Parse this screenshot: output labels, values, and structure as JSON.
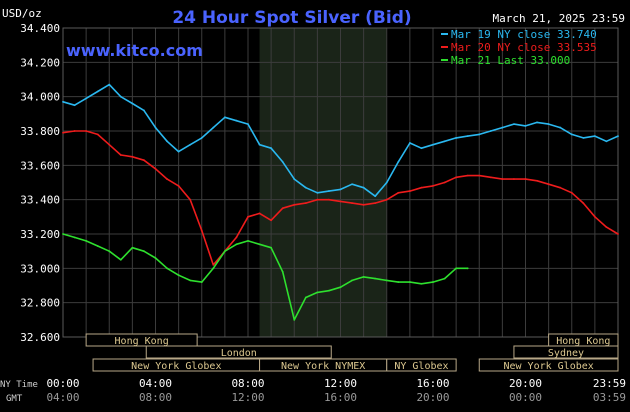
{
  "chart_data": {
    "type": "line",
    "title": "24 Hour Spot Silver (Bid)",
    "ylabel": "USD/oz",
    "date": "March 21, 2025 23:59",
    "watermark": "www.kitco.com",
    "ylim": [
      32.6,
      34.4
    ],
    "yticks": [
      "34.400",
      "34.200",
      "34.000",
      "33.800",
      "33.600",
      "33.400",
      "33.200",
      "33.000",
      "32.800",
      "32.600"
    ],
    "xlim": [
      0,
      24
    ],
    "row_labels": {
      "ny": "NY Time",
      "gmt": "GMT"
    },
    "xticks_ny": [
      "00:00",
      "04:00",
      "08:00",
      "12:00",
      "16:00",
      "20:00",
      "23:59"
    ],
    "xticks_gmt": [
      "04:00",
      "08:00",
      "12:00",
      "16:00",
      "20:00",
      "00:00",
      "03:59"
    ],
    "shaded_session_hours": [
      8.5,
      14
    ],
    "legend": [
      {
        "label": "Mar 19 NY close 33.740",
        "color": "#2ab8f0"
      },
      {
        "label": "Mar 20 NY close 33.535",
        "color": "#ee1c1c"
      },
      {
        "label": "Mar 21 Last 33.000",
        "color": "#2ee02e"
      }
    ],
    "sessions": [
      {
        "name": "Hong Kong",
        "row": 0,
        "start": 1.0,
        "end": 5.8
      },
      {
        "name": "London",
        "row": 1,
        "start": 3.6,
        "end": 11.6
      },
      {
        "name": "New York Globex",
        "row": 2,
        "start": 1.3,
        "end": 8.5
      },
      {
        "name": "New York NYMEX",
        "row": 2,
        "start": 8.5,
        "end": 14.0
      },
      {
        "name": "NY Globex",
        "row": 2,
        "start": 14.0,
        "end": 17.0
      },
      {
        "name": "Hong Kong",
        "row": 0,
        "start": 21.0,
        "end": 24.0
      },
      {
        "name": "Sydney",
        "row": 1,
        "start": 19.5,
        "end": 24.0
      },
      {
        "name": "New York Globex",
        "row": 2,
        "start": 18.0,
        "end": 24.0
      }
    ],
    "series": [
      {
        "name": "Mar 19",
        "color": "#2ab8f0",
        "x": [
          0,
          0.5,
          1,
          1.5,
          2,
          2.5,
          3,
          3.5,
          4,
          4.5,
          5,
          5.5,
          6,
          6.5,
          7,
          7.5,
          8,
          8.5,
          9,
          9.5,
          10,
          10.5,
          11,
          11.5,
          12,
          12.5,
          13,
          13.5,
          14,
          14.5,
          15,
          15.5,
          16,
          16.5,
          17,
          17.5,
          18,
          18.5,
          19,
          19.5,
          20,
          20.5,
          21,
          21.5,
          22,
          22.5,
          23,
          23.5,
          24
        ],
        "y": [
          33.97,
          33.95,
          33.99,
          34.03,
          34.07,
          34.0,
          33.96,
          33.92,
          33.82,
          33.74,
          33.68,
          33.72,
          33.76,
          33.82,
          33.88,
          33.86,
          33.84,
          33.72,
          33.7,
          33.62,
          33.52,
          33.47,
          33.44,
          33.45,
          33.46,
          33.49,
          33.47,
          33.42,
          33.5,
          33.62,
          33.73,
          33.7,
          33.72,
          33.74,
          33.76,
          33.77,
          33.78,
          33.8,
          33.82,
          33.84,
          33.83,
          33.85,
          33.84,
          33.82,
          33.78,
          33.76,
          33.77,
          33.74,
          33.77
        ]
      },
      {
        "name": "Mar 20",
        "color": "#ee1c1c",
        "x": [
          0,
          0.5,
          1,
          1.5,
          2,
          2.5,
          3,
          3.5,
          4,
          4.5,
          5,
          5.5,
          6,
          6.5,
          7,
          7.5,
          8,
          8.5,
          9,
          9.5,
          10,
          10.5,
          11,
          11.5,
          12,
          12.5,
          13,
          13.5,
          14,
          14.5,
          15,
          15.5,
          16,
          16.5,
          17,
          17.5,
          18,
          18.5,
          19,
          19.5,
          20,
          20.5,
          21,
          21.5,
          22,
          22.5,
          23,
          23.5,
          24
        ],
        "y": [
          33.79,
          33.8,
          33.8,
          33.78,
          33.72,
          33.66,
          33.65,
          33.63,
          33.58,
          33.52,
          33.48,
          33.4,
          33.22,
          33.02,
          33.1,
          33.18,
          33.3,
          33.32,
          33.28,
          33.35,
          33.37,
          33.38,
          33.4,
          33.4,
          33.39,
          33.38,
          33.37,
          33.38,
          33.4,
          33.44,
          33.45,
          33.47,
          33.48,
          33.5,
          33.53,
          33.54,
          33.54,
          33.53,
          33.52,
          33.52,
          33.52,
          33.51,
          33.49,
          33.47,
          33.44,
          33.38,
          33.3,
          33.24,
          33.2
        ]
      },
      {
        "name": "Mar 21",
        "color": "#2ee02e",
        "x": [
          0,
          0.5,
          1,
          1.5,
          2,
          2.5,
          3,
          3.5,
          4,
          4.5,
          5,
          5.5,
          6,
          6.5,
          7,
          7.5,
          8,
          8.5,
          9,
          9.5,
          10,
          10.5,
          11,
          11.5,
          12,
          12.5,
          13,
          13.5,
          14,
          14.5,
          15,
          15.5,
          16,
          16.5,
          17,
          17.5
        ],
        "y": [
          33.2,
          33.18,
          33.16,
          33.13,
          33.1,
          33.05,
          33.12,
          33.1,
          33.06,
          33.0,
          32.96,
          32.93,
          32.92,
          33.0,
          33.1,
          33.14,
          33.16,
          33.14,
          33.12,
          32.98,
          32.7,
          32.83,
          32.86,
          32.87,
          32.89,
          32.93,
          32.95,
          32.94,
          32.93,
          32.92,
          32.92,
          32.91,
          32.92,
          32.94,
          33.0,
          33.0
        ]
      }
    ]
  }
}
